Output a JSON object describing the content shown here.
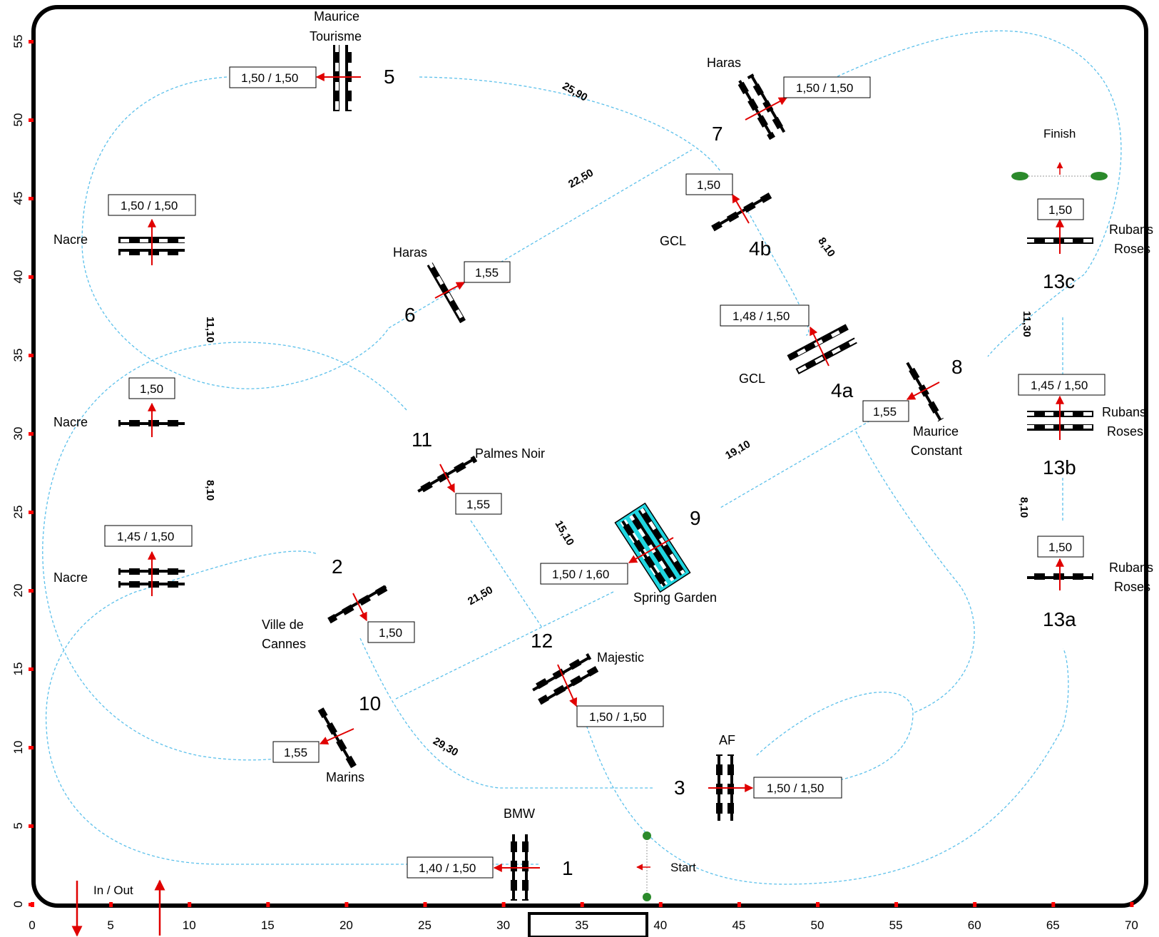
{
  "course": {
    "x_ticks": [
      "0",
      "5",
      "10",
      "15",
      "20",
      "25",
      "30",
      "35",
      "40",
      "45",
      "50",
      "55",
      "60",
      "65",
      "70"
    ],
    "y_ticks": [
      "0",
      "5",
      "10",
      "15",
      "20",
      "25",
      "30",
      "35",
      "40",
      "45",
      "50",
      "55"
    ],
    "in_out_label": "In / Out",
    "start_label": "Start",
    "finish_label": "Finish",
    "obstacles": [
      {
        "num": "1",
        "name": "BMW",
        "height": "1,40 / 1,50"
      },
      {
        "num": "2",
        "name": "Ville de Cannes",
        "height": "1,50"
      },
      {
        "num": "3",
        "name": "AF",
        "height": "1,50 / 1,50"
      },
      {
        "num": "4a",
        "name": "GCL",
        "height": "1,48 / 1,50"
      },
      {
        "num": "4b",
        "name": "GCL",
        "height": "1,50"
      },
      {
        "num": "5",
        "name": "Maurice Tourisme",
        "height": "1,50 / 1,50"
      },
      {
        "num": "6",
        "name": "Haras",
        "height": "1,55"
      },
      {
        "num": "7",
        "name": "Haras",
        "height": "1,50 / 1,50"
      },
      {
        "num": "8",
        "name": "Maurice Constant",
        "height": "1,55"
      },
      {
        "num": "9",
        "name": "Spring Garden",
        "height": "1,50 / 1,60"
      },
      {
        "num": "10",
        "name": "Marins",
        "height": "1,55"
      },
      {
        "num": "11",
        "name": "Palmes Noir",
        "height": "1,55"
      },
      {
        "num": "12",
        "name": "Majestic",
        "height": "1,50 / 1,50"
      },
      {
        "num": "13a",
        "name": "Rubans Roses",
        "height": "1,50"
      },
      {
        "num": "13b",
        "name": "Rubans Roses",
        "height": "1,45 / 1,50"
      },
      {
        "num": "13c",
        "name": "Rubans Roses",
        "height": "1,50"
      }
    ],
    "warmup": [
      {
        "name": "Nacre",
        "height": "1,50 / 1,50"
      },
      {
        "name": "Nacre",
        "height": "1,50"
      },
      {
        "name": "Nacre",
        "height": "1,45 / 1,50"
      }
    ],
    "distances": [
      "25,90",
      "22,50",
      "8,10",
      "11,10",
      "8,10",
      "11,30",
      "8,10",
      "19,10",
      "15,10",
      "21,50",
      "29,30"
    ],
    "colors": {
      "frame": "#000000",
      "route": "#5bc0eb",
      "arrow": "#e00000",
      "water": "#1fd6e0",
      "tick": "#ff0000"
    }
  }
}
